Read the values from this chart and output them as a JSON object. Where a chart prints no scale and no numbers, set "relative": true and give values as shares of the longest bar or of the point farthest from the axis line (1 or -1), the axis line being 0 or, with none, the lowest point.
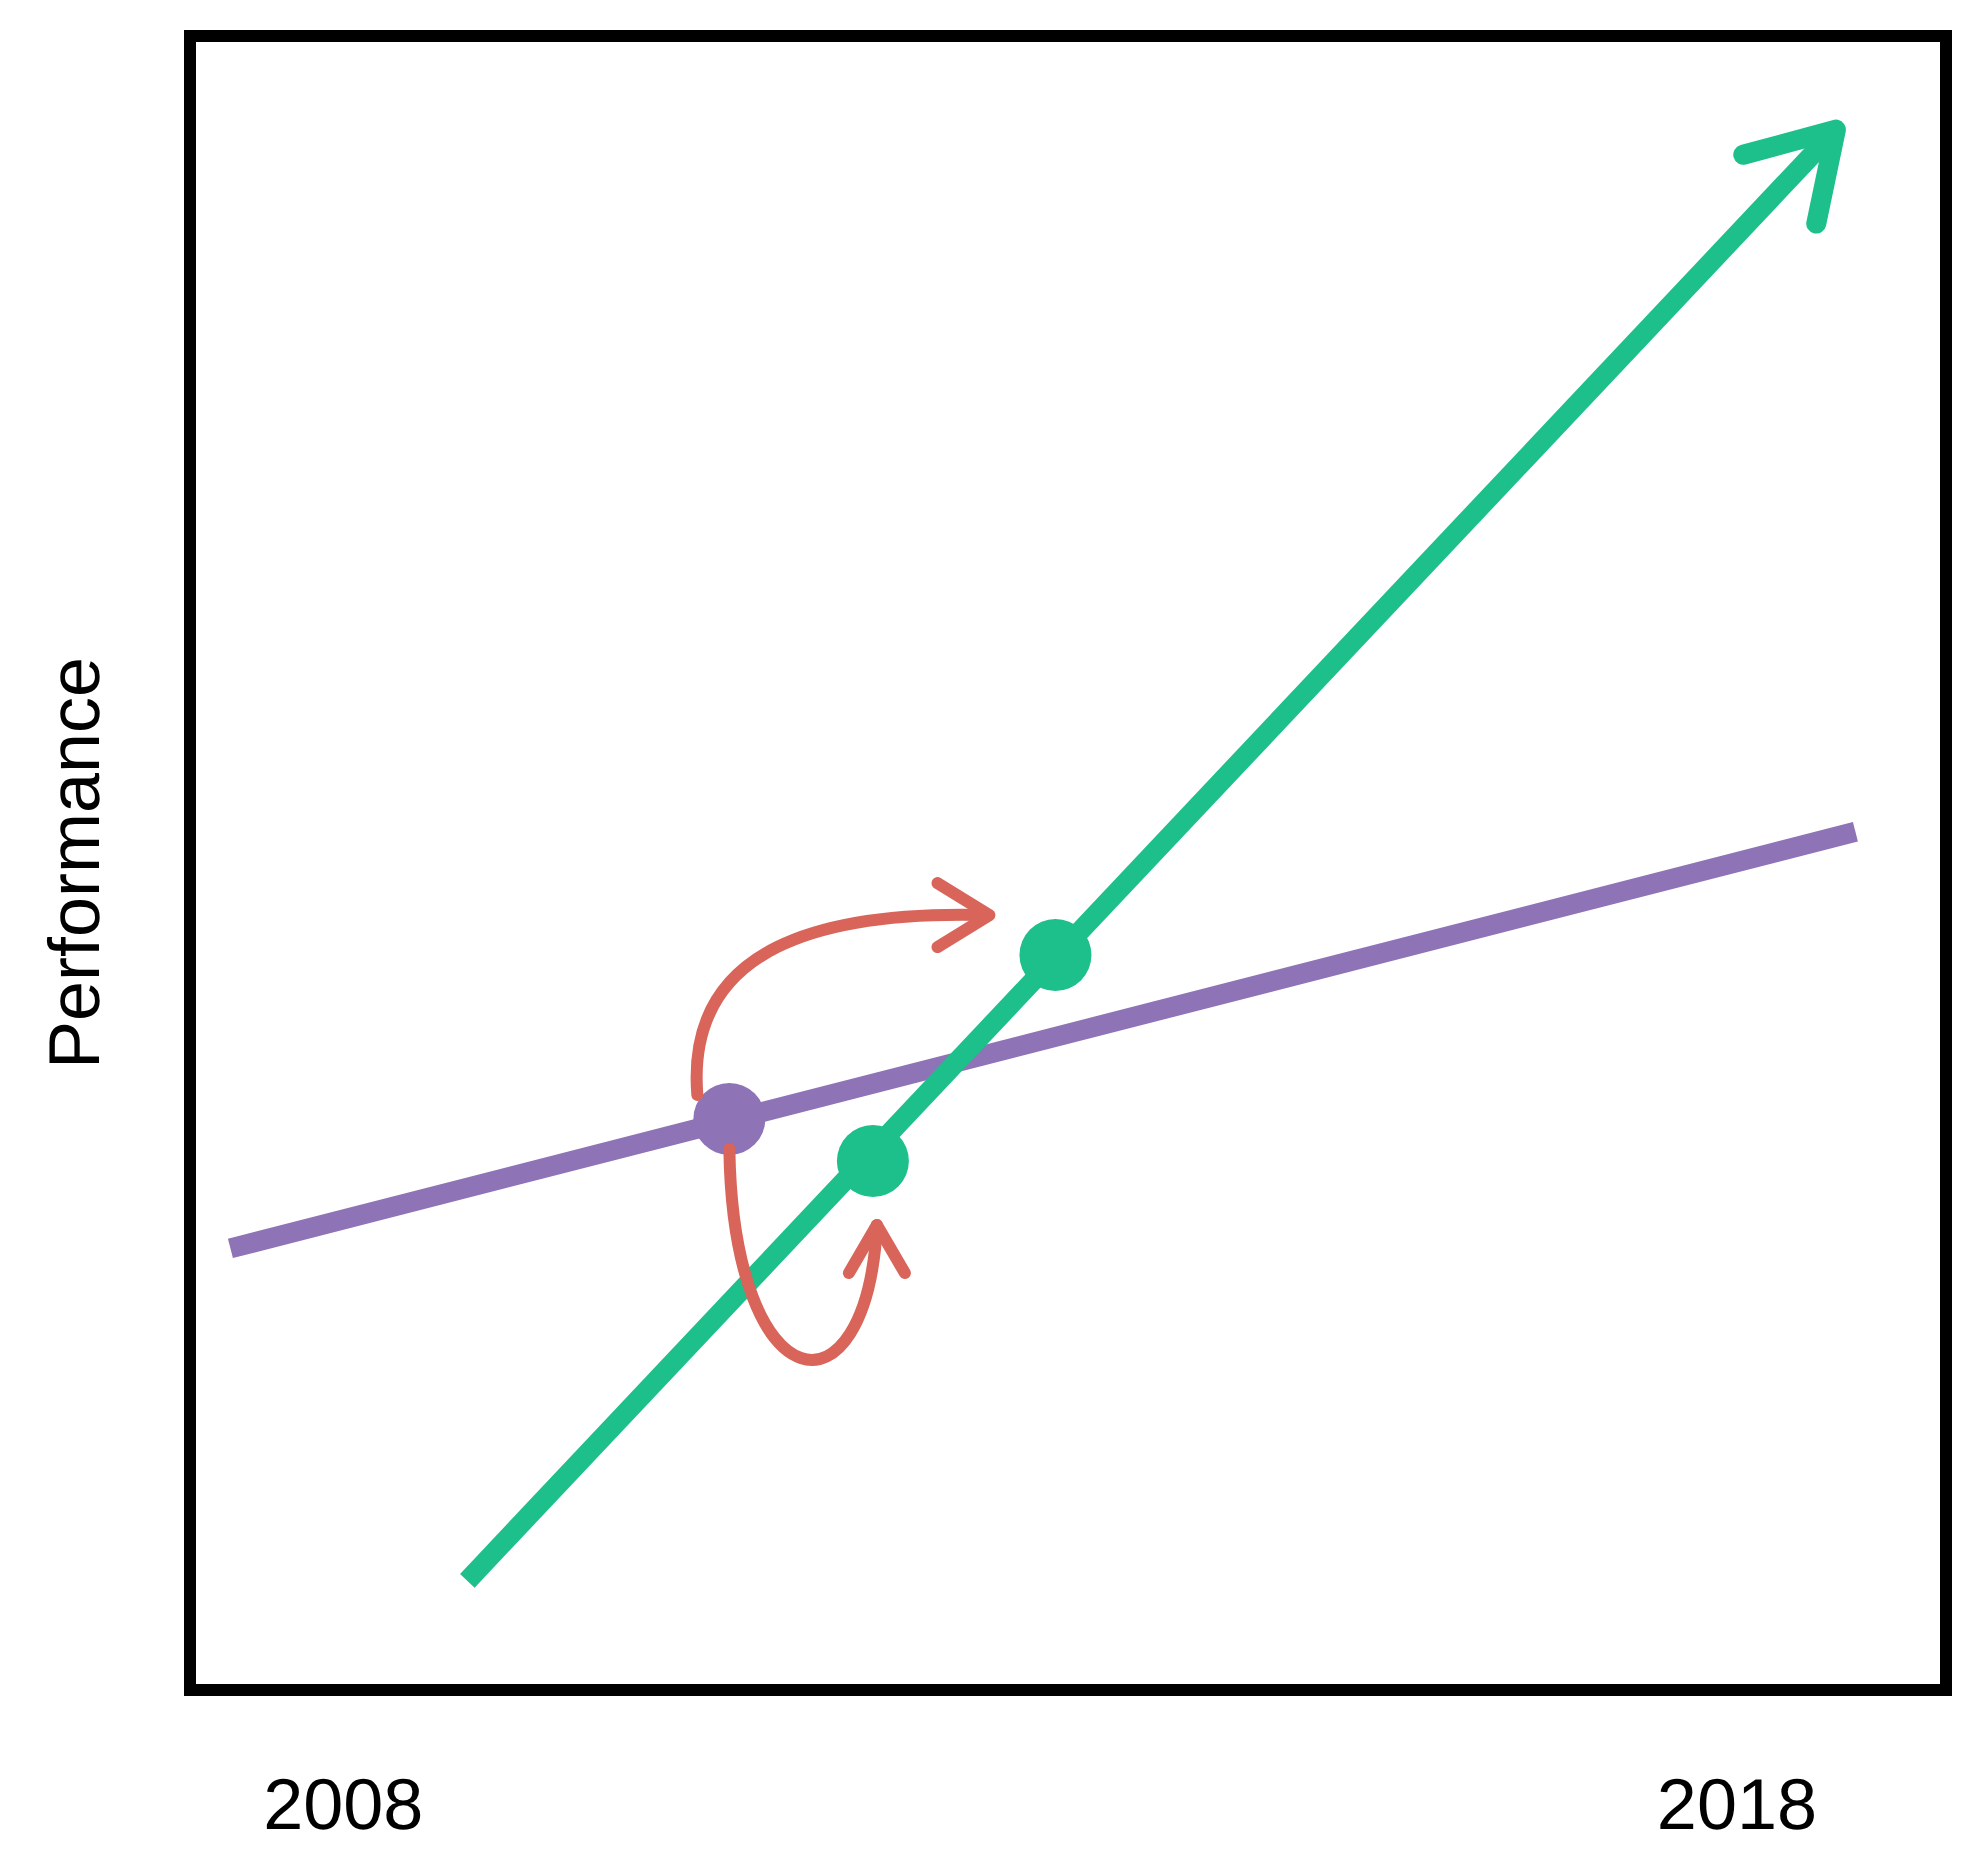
{
  "chart_data": {
    "type": "line",
    "ylabel": "Performance",
    "relative": true,
    "legend": false,
    "grid": false,
    "xlim": [
      2006.9,
      2019.5
    ],
    "xticks": [
      2008,
      2018
    ],
    "series": [
      {
        "type": "line",
        "color": "#1dbf8a",
        "x": [
          2008.89,
          2018.71
        ],
        "values": [
          0.07,
          1.0
        ],
        "marker": "none"
      },
      {
        "type": "line",
        "color": "#8e74b6",
        "x": [
          2007.19,
          2018.85
        ],
        "values": [
          0.283,
          0.55
        ],
        "marker": "none"
      },
      {
        "type": "scatter",
        "color": "#8e74b6",
        "x": [
          2010.77
        ],
        "values": [
          0.366
        ],
        "marker": "circle"
      },
      {
        "type": "scatter",
        "color": "#1dbf8a",
        "x": [
          2011.8,
          2013.11
        ],
        "values": [
          0.339,
          0.471
        ],
        "marker": "circle"
      }
    ]
  }
}
